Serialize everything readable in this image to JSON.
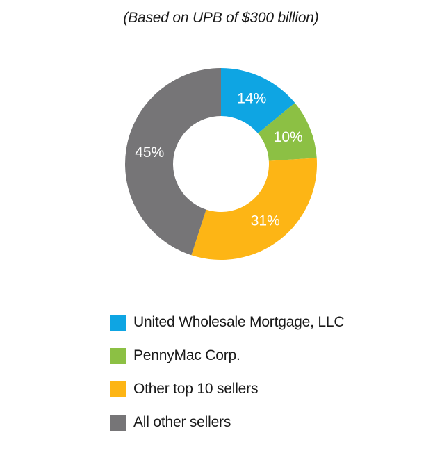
{
  "subtitle": "(Based on UPB of $300 billion)",
  "chart_data": {
    "type": "pie",
    "variant": "donut",
    "title": "",
    "subtitle": "(Based on UPB of $300 billion)",
    "legend_position": "bottom",
    "series": [
      {
        "name": "United Wholesale Mortgage, LLC",
        "value": 14,
        "label": "14%",
        "color": "#0EA5E3"
      },
      {
        "name": "PennyMac Corp.",
        "value": 10,
        "label": "10%",
        "color": "#8CC044"
      },
      {
        "name": "Other top 10 sellers",
        "value": 31,
        "label": "31%",
        "color": "#FDB515"
      },
      {
        "name": "All other sellers",
        "value": 45,
        "label": "45%",
        "color": "#767577"
      }
    ]
  }
}
